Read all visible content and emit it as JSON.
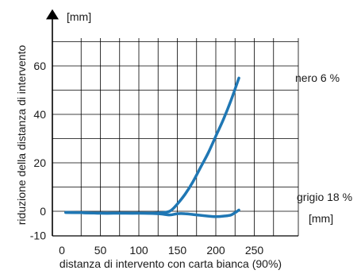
{
  "chart_data": {
    "type": "line",
    "xlabel": "distanza di intervento con carta bianca (90%)",
    "ylabel": "riduzione della distanza di intervento",
    "x_unit": "[mm]",
    "y_unit": "[mm]",
    "xlim": [
      0,
      250
    ],
    "ylim": [
      -10,
      70
    ],
    "x_ticks": [
      0,
      50,
      100,
      150,
      200,
      250
    ],
    "y_ticks": [
      -10,
      0,
      20,
      40,
      60
    ],
    "x_tick_labels": [
      "0",
      "50",
      "100",
      "150",
      "200",
      "250"
    ],
    "y_tick_labels": [
      "-10",
      "0",
      "20",
      "40",
      "60"
    ],
    "grid": true,
    "line_color": "#1f77b4",
    "series": [
      {
        "name": "nero 6 %",
        "x": [
          5,
          25,
          50,
          75,
          100,
          125,
          140,
          150,
          160,
          170,
          180,
          190,
          200,
          210,
          220,
          230
        ],
        "y": [
          -0.5,
          -0.6,
          -0.8,
          -0.8,
          -0.8,
          -0.7,
          0,
          3,
          7,
          12,
          18,
          24,
          31,
          38,
          46,
          55
        ]
      },
      {
        "name": "grigio 18 %",
        "x": [
          5,
          25,
          50,
          75,
          100,
          125,
          140,
          150,
          160,
          175,
          190,
          200,
          210,
          220,
          230
        ],
        "y": [
          -0.5,
          -0.6,
          -0.8,
          -0.8,
          -0.8,
          -1,
          -1.5,
          -1,
          -1,
          -1.5,
          -2,
          -2.2,
          -2,
          -1.5,
          0.5
        ]
      }
    ]
  }
}
